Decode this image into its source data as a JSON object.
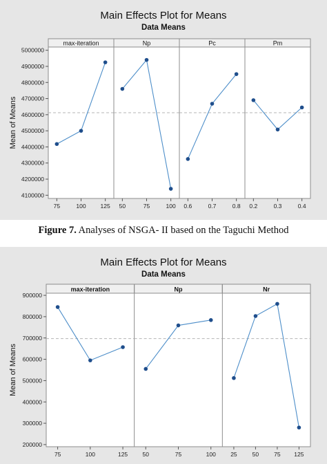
{
  "caption": {
    "label": "Figure 7.",
    "text": " Analyses of NSGA- II based on the Taguchi Method"
  },
  "colors": {
    "background": "#e6e6e6",
    "plot_area": "#ffffff",
    "line": "#4d8ec9",
    "point": "#1f4e8c",
    "reference": "#b5b5b5"
  },
  "chart_data": [
    {
      "type": "line",
      "title": "Main Effects Plot for Means",
      "subtitle": "Data Means",
      "ylabel": "Mean of Means",
      "ylim": [
        4080000,
        5020000
      ],
      "yticks": [
        4100000,
        4200000,
        4300000,
        4400000,
        4500000,
        4600000,
        4700000,
        4800000,
        4900000,
        5000000
      ],
      "reference_line": 4612000,
      "grid": false,
      "panels": [
        {
          "name": "max-iteration",
          "categories": [
            "75",
            "100",
            "125"
          ],
          "values": [
            4418000,
            4500000,
            4925000
          ]
        },
        {
          "name": "Np",
          "categories": [
            "50",
            "75",
            "100"
          ],
          "values": [
            4760000,
            4940000,
            4140000
          ]
        },
        {
          "name": "Pc",
          "categories": [
            "0.6",
            "0.7",
            "0.8"
          ],
          "values": [
            4325000,
            4668000,
            4852000
          ]
        },
        {
          "name": "Pm",
          "categories": [
            "0.2",
            "0.3",
            "0.4"
          ],
          "values": [
            4690000,
            4508000,
            4645000
          ]
        }
      ]
    },
    {
      "type": "line",
      "title": "Main Effects Plot for Means",
      "subtitle": "Data Means",
      "ylabel": "Mean of Means",
      "ylim": [
        190000,
        910000
      ],
      "yticks": [
        200000,
        300000,
        400000,
        500000,
        600000,
        700000,
        800000,
        900000
      ],
      "reference_line": 697000,
      "grid": false,
      "panels": [
        {
          "name": "max-iteration",
          "categories": [
            "75",
            "100",
            "125"
          ],
          "values": [
            845000,
            595000,
            657000
          ]
        },
        {
          "name": "Np",
          "categories": [
            "50",
            "75",
            "100"
          ],
          "values": [
            555000,
            759000,
            784000
          ]
        },
        {
          "name": "Nr",
          "categories": [
            "25",
            "50",
            "75",
            "125"
          ],
          "values": [
            512000,
            803000,
            860000,
            280000
          ]
        }
      ]
    }
  ]
}
